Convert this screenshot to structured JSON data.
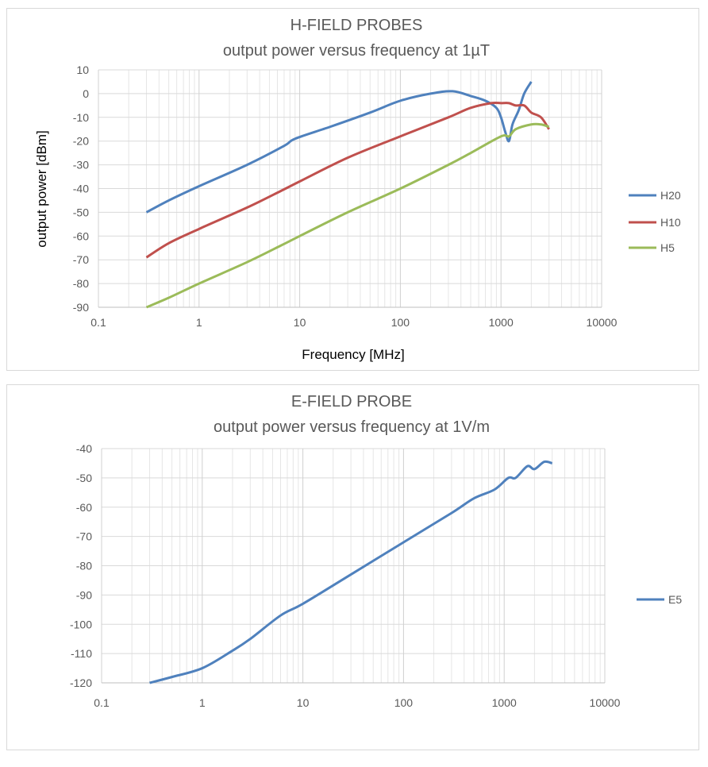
{
  "chart_data": [
    {
      "type": "line",
      "title": "H-FIELD PROBES",
      "subtitle": "output power versus frequency at 1µT",
      "xlabel": "Frequency [MHz]",
      "ylabel": "output power [dBm]",
      "xscale": "log",
      "xlim": [
        0.1,
        10000
      ],
      "ylim": [
        -90,
        10
      ],
      "xticks": [
        "0.1",
        "1",
        "10",
        "100",
        "1000",
        "10000"
      ],
      "yticks": [
        "10",
        "0",
        "-10",
        "-20",
        "-30",
        "-40",
        "-50",
        "-60",
        "-70",
        "-80",
        "-90"
      ],
      "grid": true,
      "legend": "right",
      "series": [
        {
          "name": "H20",
          "color": "#4F81BD",
          "x": [
            0.3,
            0.5,
            1,
            3,
            7,
            9,
            20,
            50,
            100,
            200,
            330,
            500,
            700,
            900,
            1000,
            1100,
            1200,
            1300,
            1500,
            1700,
            2000
          ],
          "y": [
            -50,
            -45,
            -39,
            -30,
            -22,
            -19,
            -14,
            -8,
            -3,
            0,
            1,
            -1,
            -3,
            -6,
            -10,
            -16,
            -20,
            -13,
            -7,
            0,
            5
          ]
        },
        {
          "name": "H10",
          "color": "#C0504D",
          "x": [
            0.3,
            0.5,
            1,
            3,
            6.5,
            10,
            30,
            100,
            300,
            500,
            800,
            1000,
            1200,
            1400,
            1700,
            2000,
            2500,
            3000
          ],
          "y": [
            -69,
            -63,
            -57,
            -48,
            -41,
            -37,
            -27,
            -18,
            -10,
            -6,
            -4,
            -4,
            -4,
            -5,
            -5,
            -8,
            -10,
            -15
          ]
        },
        {
          "name": "H5",
          "color": "#9BBB59",
          "x": [
            0.3,
            0.5,
            1,
            3,
            6.5,
            10,
            30,
            100,
            300,
            500,
            1000,
            1200,
            1400,
            2000,
            2500,
            3000
          ],
          "y": [
            -90,
            -86,
            -80,
            -71,
            -64,
            -60,
            -50,
            -40,
            -30,
            -25,
            -18,
            -18,
            -15,
            -13,
            -13,
            -14
          ]
        }
      ]
    },
    {
      "type": "line",
      "title": "E-FIELD PROBE",
      "subtitle": "output power versus frequency at 1V/m",
      "xlabel": "",
      "ylabel": "",
      "xscale": "log",
      "xlim": [
        0.1,
        10000
      ],
      "ylim": [
        -120,
        -40
      ],
      "xticks": [
        "0.1",
        "1",
        "10",
        "100",
        "1000",
        "10000"
      ],
      "yticks": [
        "-40",
        "-50",
        "-60",
        "-70",
        "-80",
        "-90",
        "-100",
        "-110",
        "-120"
      ],
      "grid": true,
      "legend": "right",
      "series": [
        {
          "name": "E5",
          "color": "#4F81BD",
          "x": [
            0.3,
            0.5,
            1,
            2,
            3,
            6,
            10,
            30,
            100,
            300,
            500,
            800,
            1100,
            1300,
            1700,
            2000,
            2500,
            3000
          ],
          "y": [
            -120,
            -118,
            -115,
            -109,
            -105,
            -97,
            -93,
            -83,
            -72,
            -62,
            -57,
            -54,
            -50,
            -50,
            -46,
            -47,
            -44.5,
            -45
          ]
        }
      ]
    }
  ]
}
